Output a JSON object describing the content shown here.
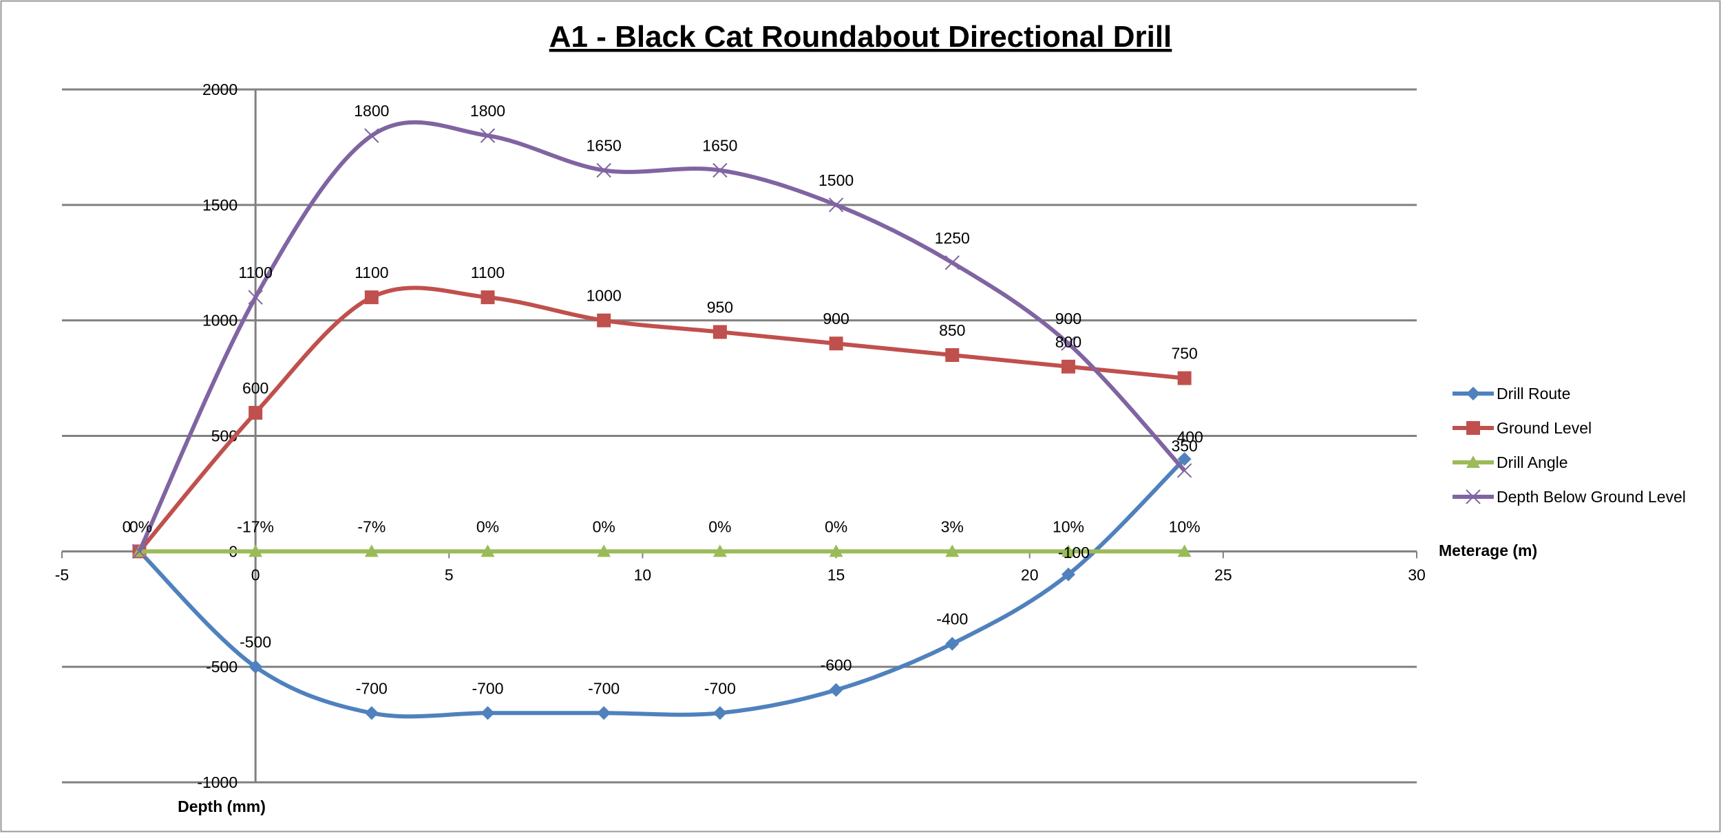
{
  "chart_data": {
    "type": "line",
    "title": "A1 - Black Cat Roundabout Directional Drill",
    "xlabel": "Meterage (m)",
    "ylabel": "Depth (mm)",
    "xlim": [
      -5,
      30
    ],
    "ylim": [
      -1000,
      2000
    ],
    "xticks": [
      -5,
      0,
      5,
      10,
      15,
      20,
      25,
      30
    ],
    "yticks": [
      -1000,
      -500,
      0,
      500,
      1000,
      1500,
      2000
    ],
    "grid": "horizontal",
    "legend_position": "right",
    "series": [
      {
        "name": "Drill Route",
        "color": "#4F81BD",
        "marker": "diamond",
        "x": [
          -3,
          0,
          3,
          6,
          9,
          12,
          15,
          18,
          21,
          24
        ],
        "y": [
          0,
          -500,
          -700,
          -700,
          -700,
          -700,
          -600,
          -400,
          -100,
          400
        ],
        "labels": [
          "",
          "-500",
          "-700",
          "-700",
          "-700",
          "-700",
          "-600",
          "-400",
          "-100",
          "400"
        ]
      },
      {
        "name": "Ground Level",
        "color": "#C0504D",
        "marker": "square",
        "x": [
          -3,
          0,
          3,
          6,
          9,
          12,
          15,
          18,
          21,
          24
        ],
        "y": [
          0,
          600,
          1100,
          1100,
          1000,
          950,
          900,
          850,
          800,
          750
        ],
        "labels": [
          "",
          "600",
          "1100",
          "1100",
          "1000",
          "950",
          "900",
          "850",
          "800",
          "750"
        ]
      },
      {
        "name": "Drill Angle",
        "color": "#9BBB59",
        "marker": "triangle",
        "x": [
          -3,
          0,
          3,
          6,
          9,
          12,
          15,
          18,
          21,
          24
        ],
        "y": [
          0,
          0,
          0,
          0,
          0,
          0,
          0,
          0,
          0,
          0
        ],
        "labels": [
          "0%",
          "-17%",
          "-7%",
          "0%",
          "0%",
          "0%",
          "0%",
          "3%",
          "10%",
          "10%"
        ]
      },
      {
        "name": "Depth Below Ground Level",
        "color": "#8064A2",
        "marker": "x",
        "x": [
          -3,
          0,
          3,
          6,
          9,
          12,
          15,
          18,
          21,
          24
        ],
        "y": [
          0,
          1100,
          1800,
          1800,
          1650,
          1650,
          1500,
          1250,
          900,
          350
        ],
        "labels": [
          "0",
          "1100",
          "1800",
          "1800",
          "1650",
          "1650",
          "1500",
          "1250",
          "900",
          "350"
        ]
      }
    ]
  }
}
